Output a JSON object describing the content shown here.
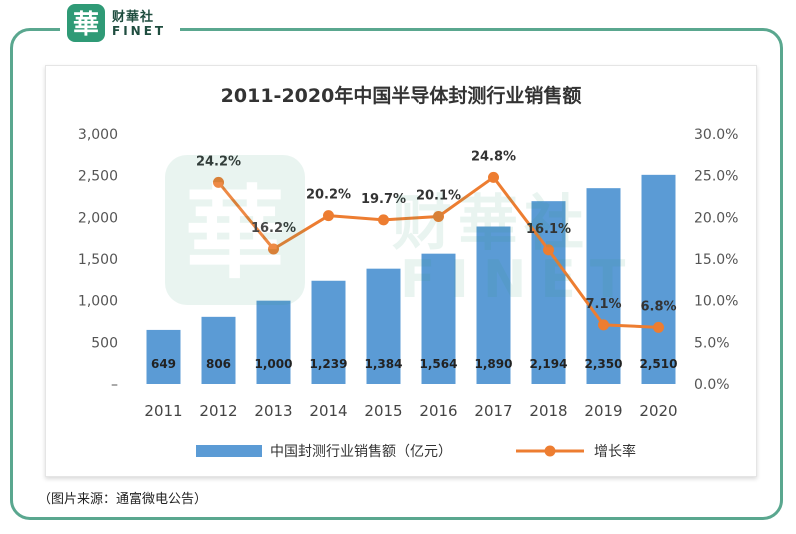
{
  "branding": {
    "logo_char": "華",
    "name_cn": "财華社",
    "name_en": "FINET"
  },
  "footnote": "（图片来源：通富微电公告）",
  "colors": {
    "bar": "#5b9bd5",
    "line": "#ed7d31",
    "frame": "#5aa78f"
  },
  "chart_data": {
    "type": "bar",
    "title": "2011-2020年中国半导体封测行业销售额",
    "categories": [
      "2011",
      "2012",
      "2013",
      "2014",
      "2015",
      "2016",
      "2017",
      "2018",
      "2019",
      "2020"
    ],
    "series": [
      {
        "name": "中国封测行业销售额（亿元）",
        "type": "bar",
        "axis": "left",
        "values": [
          649,
          806,
          1000,
          1239,
          1384,
          1564,
          1890,
          2194,
          2350,
          2510
        ],
        "labels": [
          "649",
          "806",
          "1,000",
          "1,239",
          "1,384",
          "1,564",
          "1,890",
          "2,194",
          "2,350",
          "2,510"
        ]
      },
      {
        "name": "增长率",
        "type": "line",
        "axis": "right",
        "values": [
          null,
          24.2,
          16.2,
          20.2,
          19.7,
          20.1,
          24.8,
          16.1,
          7.1,
          6.8
        ],
        "labels": [
          "",
          "24.2%",
          "16.2%",
          "20.2%",
          "19.7%",
          "20.1%",
          "24.8%",
          "16.1%",
          "7.1%",
          "6.8%"
        ]
      }
    ],
    "y_left": {
      "range": [
        0,
        3000
      ],
      "ticks": [
        "–",
        "500",
        "1,000",
        "1,500",
        "2,000",
        "2,500",
        "3,000"
      ]
    },
    "y_right": {
      "range": [
        0,
        30
      ],
      "ticks": [
        "0.0%",
        "5.0%",
        "10.0%",
        "15.0%",
        "20.0%",
        "25.0%",
        "30.0%"
      ]
    },
    "legend": "bottom",
    "grid": false
  }
}
